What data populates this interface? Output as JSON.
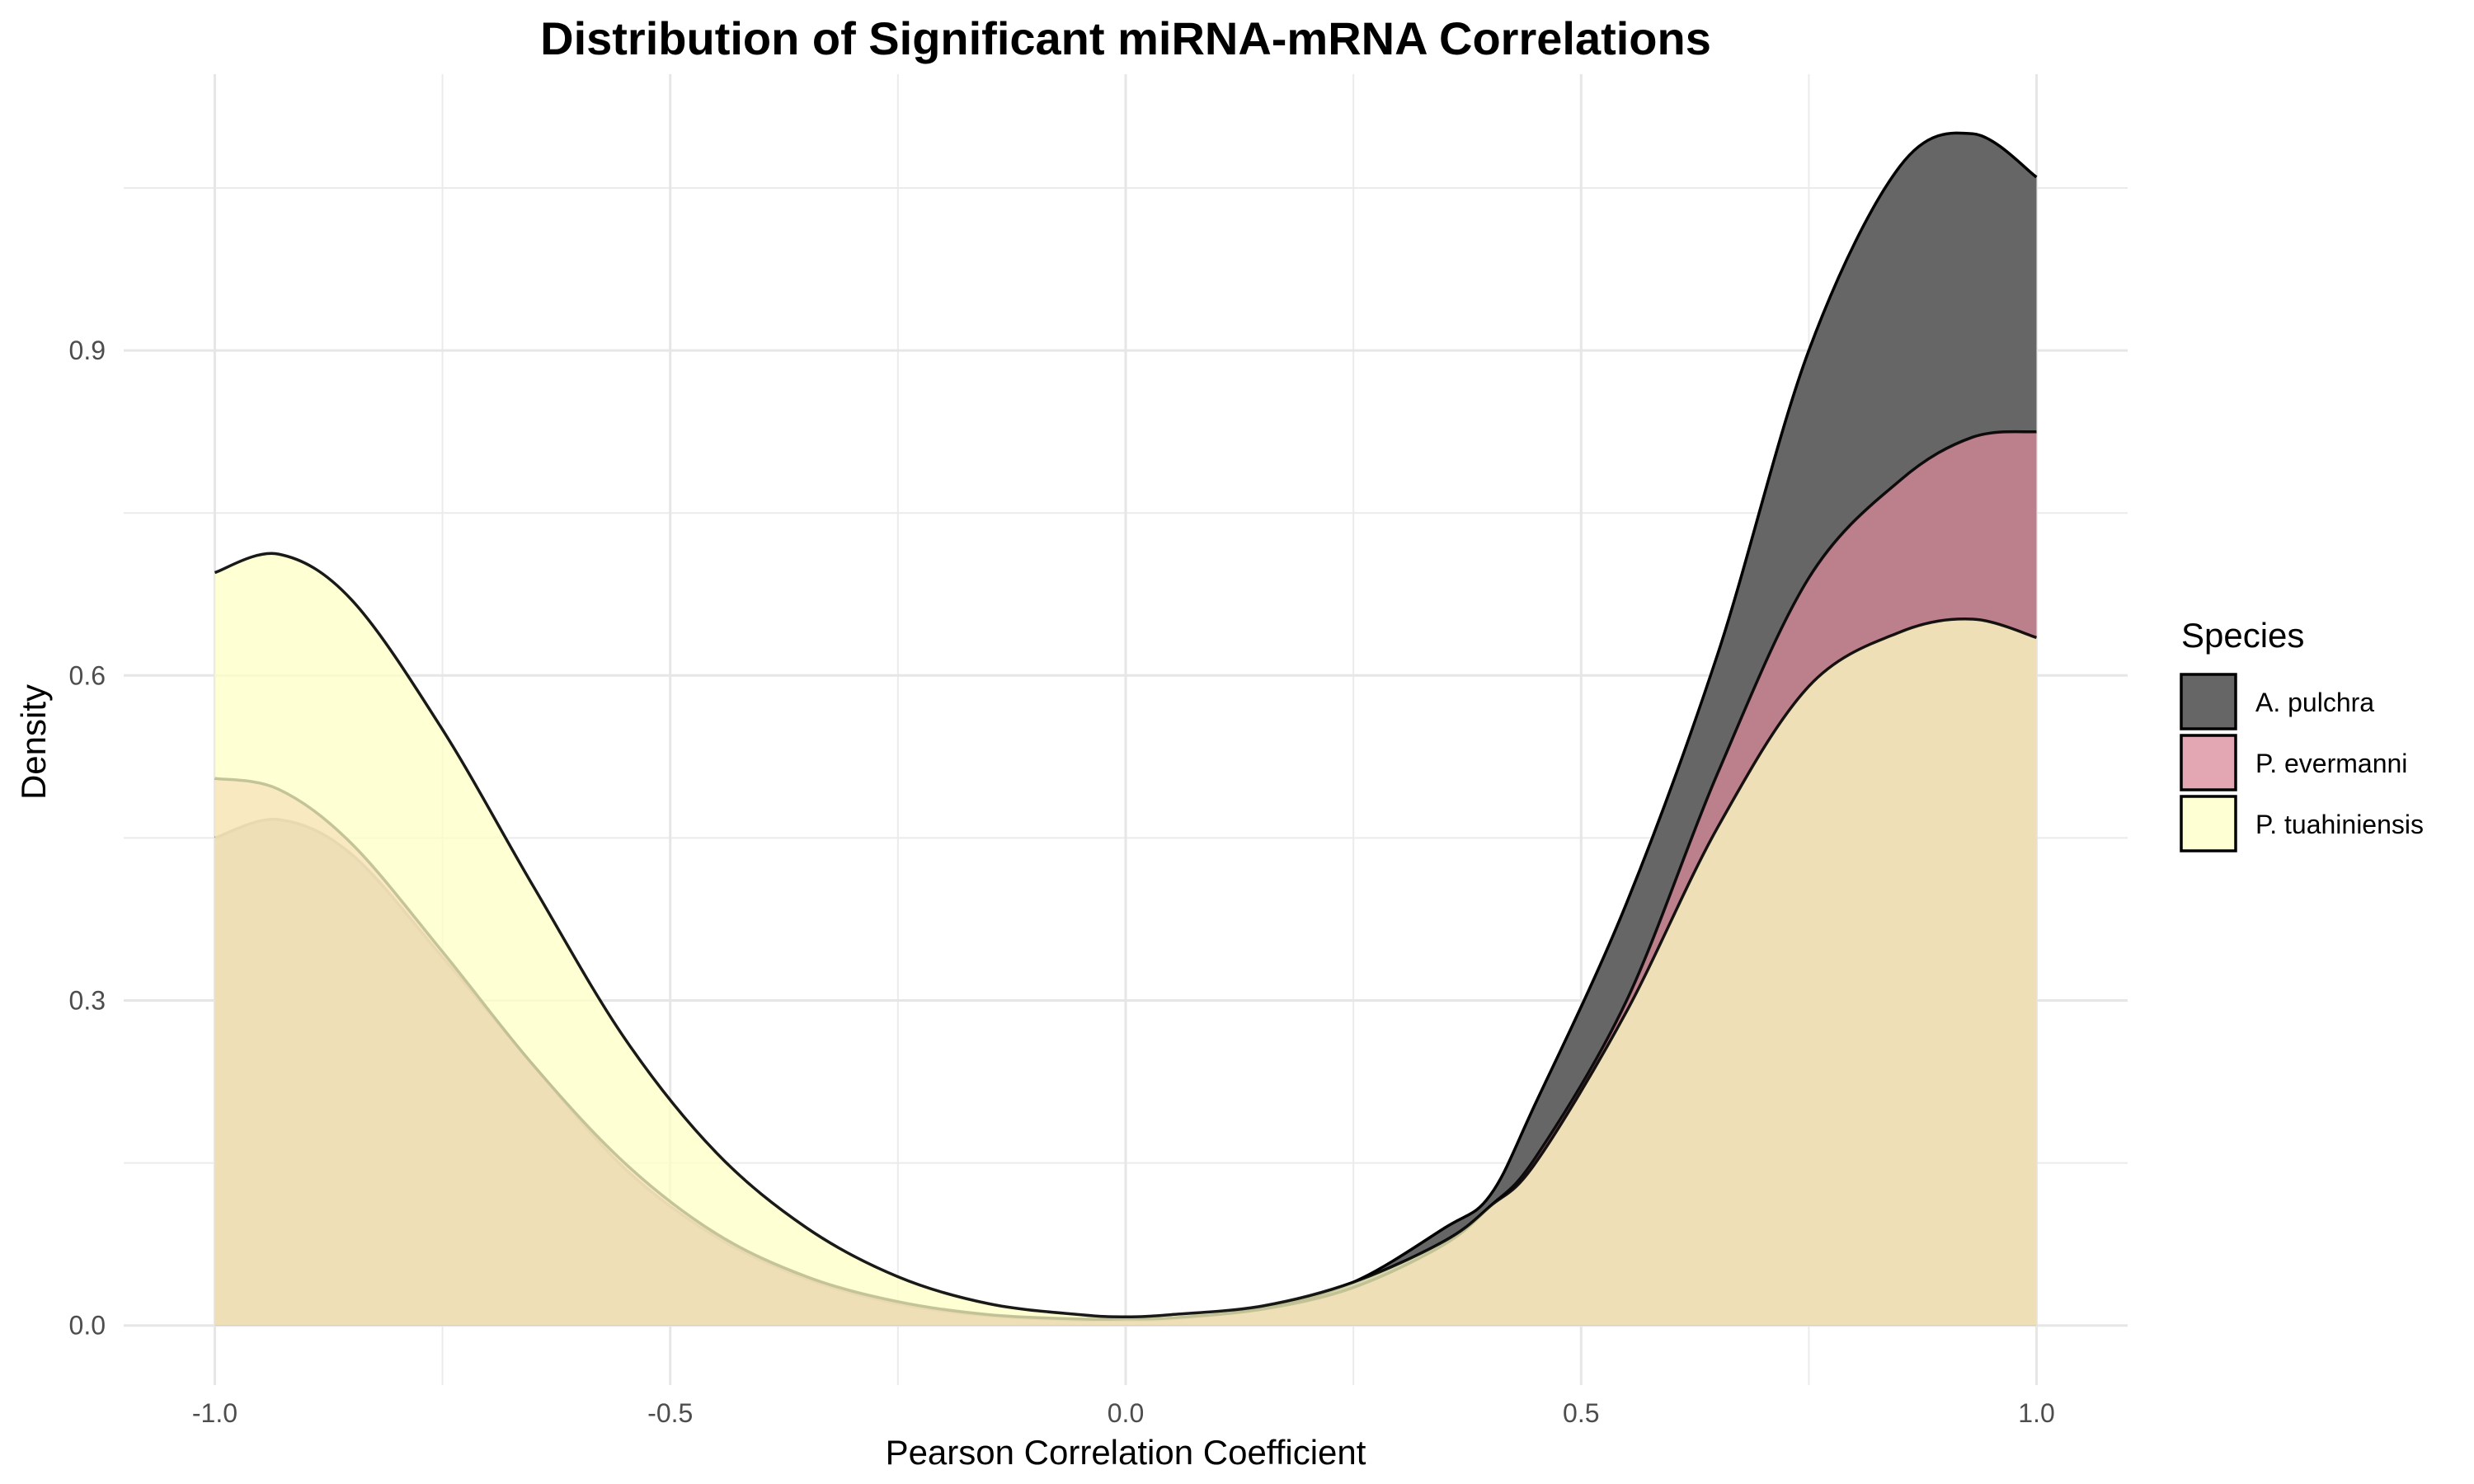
{
  "chart_data": {
    "type": "area",
    "title": "Distribution of Significant miRNA-mRNA Correlations",
    "xlabel": "Pearson Correlation Coefficient",
    "ylabel": "Density",
    "xlim": [
      -1.1,
      1.1
    ],
    "ylim": [
      -0.055,
      1.155
    ],
    "xticks": [
      -1.0,
      -0.5,
      0.0,
      0.5,
      1.0
    ],
    "xtick_labels": [
      "-1.0",
      "-0.5",
      "0.0",
      "0.5",
      "1.0"
    ],
    "yticks": [
      0.0,
      0.3,
      0.6,
      0.9
    ],
    "ytick_labels": [
      "0.0",
      "0.3",
      "0.6",
      "0.9"
    ],
    "grid": true,
    "legend": {
      "title": "Species",
      "placement": "right"
    },
    "x": [
      -1.0,
      -0.93,
      -0.85,
      -0.75,
      -0.65,
      -0.55,
      -0.45,
      -0.35,
      -0.25,
      -0.15,
      -0.05,
      0.0,
      0.05,
      0.15,
      0.25,
      0.35,
      0.4,
      0.45,
      0.55,
      0.65,
      0.75,
      0.85,
      0.93,
      1.0
    ],
    "series": [
      {
        "name": "A. pulchra",
        "color": "#666666",
        "opacity": 1.0,
        "values": [
          0.45,
          0.467,
          0.435,
          0.34,
          0.24,
          0.145,
          0.082,
          0.043,
          0.02,
          0.009,
          0.005,
          0.005,
          0.006,
          0.016,
          0.04,
          0.09,
          0.12,
          0.205,
          0.39,
          0.62,
          0.9,
          1.07,
          1.1,
          1.06
        ]
      },
      {
        "name": "P. evermanni",
        "color": "#d9899a",
        "opacity": 0.75,
        "values": [
          0.505,
          0.495,
          0.445,
          0.345,
          0.24,
          0.15,
          0.085,
          0.045,
          0.022,
          0.01,
          0.006,
          0.006,
          0.007,
          0.015,
          0.035,
          0.075,
          0.11,
          0.155,
          0.3,
          0.51,
          0.69,
          0.78,
          0.82,
          0.825
        ]
      },
      {
        "name": "P. tuahiniensis",
        "color": "#ffffc6",
        "opacity": 0.75,
        "values": [
          0.695,
          0.712,
          0.67,
          0.55,
          0.405,
          0.265,
          0.16,
          0.09,
          0.045,
          0.02,
          0.01,
          0.008,
          0.01,
          0.018,
          0.04,
          0.078,
          0.11,
          0.15,
          0.29,
          0.46,
          0.59,
          0.64,
          0.652,
          0.635
        ]
      }
    ]
  }
}
